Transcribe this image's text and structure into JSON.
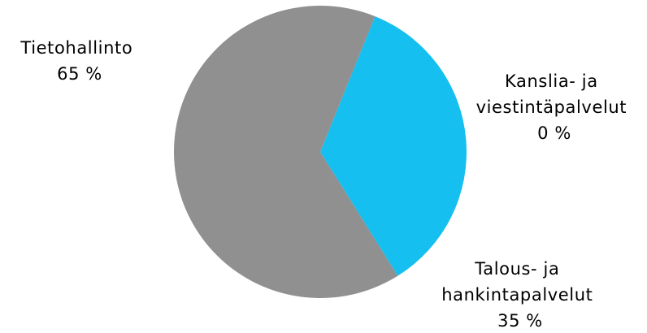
{
  "chart_data": {
    "type": "pie",
    "slices": [
      {
        "label": [
          "Kanslia- ja",
          "viestintäpalvelut"
        ],
        "percent_label": "0 %",
        "value": 0,
        "color": "#909090"
      },
      {
        "label": [
          "Talous- ja",
          "hankintapalvelut"
        ],
        "percent_label": "35 %",
        "value": 35,
        "color": "#15bfef"
      },
      {
        "label": [
          "Tietohallinto"
        ],
        "percent_label": "65 %",
        "value": 65,
        "color": "#909090"
      }
    ],
    "start_angle_deg": 22,
    "direction": "clockwise",
    "legend": "none"
  }
}
